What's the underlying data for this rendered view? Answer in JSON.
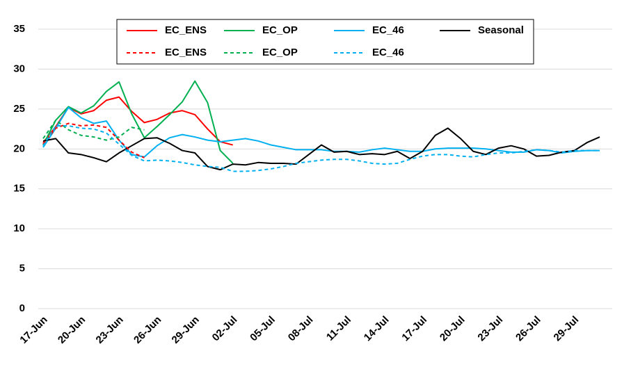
{
  "chart_data": {
    "type": "line",
    "categories": [
      "17-Jun",
      null,
      null,
      "20-Jun",
      null,
      null,
      "23-Jun",
      null,
      null,
      "26-Jun",
      null,
      null,
      "29-Jun",
      null,
      null,
      "02-Jul",
      null,
      null,
      "05-Jul",
      null,
      null,
      "08-Jul",
      null,
      null,
      "11-Jul",
      null,
      null,
      "14-Jul",
      null,
      null,
      "17-Jul",
      null,
      null,
      "20-Jul",
      null,
      null,
      "23-Jul",
      null,
      null,
      "26-Jul",
      null,
      null,
      "29-Jul",
      null,
      null
    ],
    "ylim": [
      0,
      35
    ],
    "yticks": [
      0,
      5,
      10,
      15,
      20,
      25,
      30,
      35
    ],
    "grid": true,
    "series": [
      {
        "name": "EC_ENS",
        "color": "#ff0000",
        "dashed": false,
        "values": [
          20.8,
          22.8,
          25.2,
          24.4,
          24.8,
          26.1,
          26.5,
          24.7,
          23.3,
          23.7,
          24.5,
          24.8,
          24.3,
          22.5,
          20.9,
          20.5,
          null,
          null,
          null,
          null,
          null,
          null,
          null,
          null,
          null,
          null,
          null,
          null,
          null,
          null,
          null,
          null,
          null,
          null,
          null,
          null,
          null,
          null,
          null,
          null,
          null,
          null,
          null,
          null,
          null
        ]
      },
      {
        "name": "EC_OP",
        "color": "#00b050",
        "dashed": false,
        "values": [
          20.5,
          23.6,
          25.3,
          24.5,
          25.4,
          27.2,
          28.4,
          24.4,
          21.4,
          22.8,
          24.3,
          25.9,
          28.5,
          25.8,
          19.8,
          18.2,
          null,
          null,
          null,
          null,
          null,
          null,
          null,
          null,
          null,
          null,
          null,
          null,
          null,
          null,
          null,
          null,
          null,
          null,
          null,
          null,
          null,
          null,
          null,
          null,
          null,
          null,
          null,
          null,
          null
        ]
      },
      {
        "name": "EC_46",
        "color": "#00b0f0",
        "dashed": false,
        "values": [
          20.2,
          22.6,
          25.2,
          23.9,
          23.2,
          23.5,
          21.1,
          19.3,
          19.0,
          20.4,
          21.4,
          21.8,
          21.5,
          21.1,
          20.9,
          21.1,
          21.3,
          21.0,
          20.5,
          20.2,
          19.9,
          19.9,
          19.9,
          19.7,
          19.7,
          19.6,
          19.9,
          20.1,
          19.9,
          19.7,
          19.7,
          20.0,
          20.1,
          20.1,
          20.1,
          20.0,
          19.8,
          19.6,
          19.6,
          19.9,
          19.8,
          19.5,
          19.7,
          19.8,
          19.8
        ]
      },
      {
        "name": "Seasonal",
        "color": "#000000",
        "dashed": false,
        "values": [
          21.0,
          21.3,
          19.5,
          19.3,
          18.9,
          18.4,
          19.5,
          20.4,
          21.3,
          21.4,
          20.7,
          19.8,
          19.5,
          17.8,
          17.4,
          18.1,
          18.0,
          18.3,
          18.2,
          18.2,
          18.1,
          19.3,
          20.5,
          19.6,
          19.7,
          19.3,
          19.4,
          19.3,
          19.7,
          18.8,
          19.7,
          21.7,
          22.6,
          21.3,
          19.7,
          19.3,
          20.1,
          20.4,
          20.0,
          19.1,
          19.2,
          19.6,
          19.8,
          20.8,
          21.5
        ]
      },
      {
        "name": "EC_ENS",
        "color": "#ff0000",
        "dashed": true,
        "values": [
          20.6,
          22.6,
          23.2,
          22.9,
          23.0,
          22.7,
          21.1,
          19.6,
          18.9,
          null,
          null,
          null,
          null,
          null,
          null,
          null,
          null,
          null,
          null,
          null,
          null,
          null,
          null,
          null,
          null,
          null,
          null,
          null,
          null,
          null,
          null,
          null,
          null,
          null,
          null,
          null,
          null,
          null,
          null,
          null,
          null,
          null,
          null,
          null,
          null
        ]
      },
      {
        "name": "EC_OP",
        "color": "#00b050",
        "dashed": true,
        "values": [
          21.3,
          23.6,
          22.4,
          21.7,
          21.5,
          21.1,
          21.5,
          22.7,
          22.4,
          null,
          null,
          null,
          null,
          null,
          null,
          null,
          null,
          null,
          null,
          null,
          null,
          null,
          null,
          null,
          null,
          null,
          null,
          null,
          null,
          null,
          null,
          null,
          null,
          null,
          null,
          null,
          null,
          null,
          null,
          null,
          null,
          null,
          null,
          null,
          null
        ]
      },
      {
        "name": "EC_46",
        "color": "#00b0f0",
        "dashed": true,
        "values": [
          20.4,
          22.9,
          22.9,
          22.6,
          22.5,
          22.0,
          20.6,
          19.2,
          18.5,
          18.6,
          18.5,
          18.3,
          18.0,
          17.8,
          17.7,
          17.2,
          17.2,
          17.3,
          17.5,
          17.8,
          18.2,
          18.4,
          18.6,
          18.7,
          18.7,
          18.5,
          18.2,
          18.1,
          18.2,
          18.7,
          19.1,
          19.3,
          19.3,
          19.1,
          19.0,
          19.3,
          19.5,
          19.5,
          19.7,
          19.9,
          19.8,
          19.6,
          19.8,
          19.8,
          19.8
        ]
      }
    ]
  }
}
